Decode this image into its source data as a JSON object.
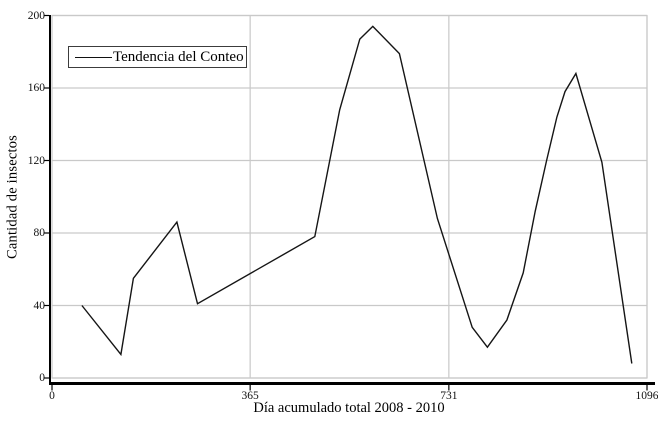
{
  "chart_data": {
    "type": "line",
    "title": "",
    "xlabel": "Día acumulado total 2008 - 2010",
    "ylabel": "Cantidad de insectos",
    "xlim": [
      0,
      1096
    ],
    "ylim": [
      0,
      200
    ],
    "xticks": [
      0,
      365,
      731,
      1096
    ],
    "yticks": [
      0,
      40,
      80,
      120,
      160,
      200
    ],
    "grid": true,
    "legend_position": "top-left",
    "series": [
      {
        "name": "Tendencia del Conteo",
        "color": "#151515",
        "points": [
          [
            55,
            40
          ],
          [
            127,
            13
          ],
          [
            150,
            55
          ],
          [
            230,
            86
          ],
          [
            268,
            41
          ],
          [
            484,
            78
          ],
          [
            530,
            148
          ],
          [
            567,
            187
          ],
          [
            591,
            194
          ],
          [
            640,
            179
          ],
          [
            710,
            88
          ],
          [
            774,
            28
          ],
          [
            802,
            17
          ],
          [
            838,
            32
          ],
          [
            868,
            58
          ],
          [
            890,
            92
          ],
          [
            911,
            120
          ],
          [
            930,
            144
          ],
          [
            945,
            158
          ],
          [
            965,
            168
          ],
          [
            1013,
            119
          ],
          [
            1068,
            8
          ]
        ]
      }
    ],
    "colors": {
      "background": "#ffffff",
      "grid": "#c9c9c9",
      "frame": "#c9c9c9",
      "axis": "#000000",
      "text": "#000000",
      "legend_border": "#3c3c3c"
    }
  }
}
